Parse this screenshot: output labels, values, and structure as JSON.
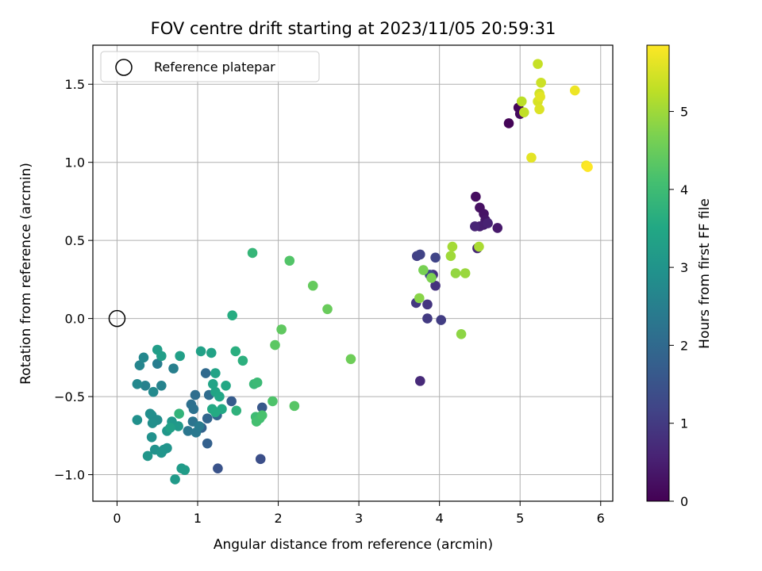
{
  "chart_data": {
    "type": "scatter",
    "title": "FOV centre drift starting at 2023/11/05 20:59:31",
    "xlabel": "Angular distance from reference (arcmin)",
    "ylabel": "Rotation from reference (arcmin)",
    "xlim": [
      -0.3,
      6.15
    ],
    "ylim": [
      -1.17,
      1.75
    ],
    "xticks": [
      "0",
      "1",
      "2",
      "3",
      "4",
      "5",
      "6"
    ],
    "yticks": [
      "−1.0",
      "−0.5",
      "0.0",
      "0.5",
      "1.0",
      "1.5"
    ],
    "grid": true,
    "legend_placement": "top-left",
    "reference": {
      "label": "Reference platepar",
      "x": 0,
      "y": 0
    },
    "colorbar": {
      "label": "Hours from first FF file",
      "colormap": "viridis",
      "range": [
        0,
        5.85
      ],
      "ticks": [
        "0",
        "1",
        "2",
        "3",
        "4",
        "5"
      ]
    },
    "points": [
      [
        4.86,
        1.25,
        0.05
      ],
      [
        4.98,
        1.35,
        0.1
      ],
      [
        5.0,
        1.31,
        0.15
      ],
      [
        4.45,
        0.78,
        0.2
      ],
      [
        4.5,
        0.71,
        0.25
      ],
      [
        4.55,
        0.67,
        0.3
      ],
      [
        4.57,
        0.63,
        0.35
      ],
      [
        4.72,
        0.58,
        0.4
      ],
      [
        4.55,
        0.6,
        0.45
      ],
      [
        4.5,
        0.59,
        0.5
      ],
      [
        4.6,
        0.61,
        0.55
      ],
      [
        4.44,
        0.59,
        0.6
      ],
      [
        4.47,
        0.45,
        0.65
      ],
      [
        3.76,
        -0.4,
        0.7
      ],
      [
        3.92,
        0.28,
        0.8
      ],
      [
        3.95,
        0.21,
        0.85
      ],
      [
        3.85,
        0.09,
        0.9
      ],
      [
        3.71,
        0.1,
        0.95
      ],
      [
        3.85,
        0.0,
        1.0
      ],
      [
        4.02,
        -0.01,
        1.05
      ],
      [
        3.72,
        0.4,
        1.1
      ],
      [
        3.76,
        0.41,
        1.15
      ],
      [
        3.95,
        0.39,
        1.2
      ],
      [
        3.88,
        0.28,
        1.25
      ],
      [
        1.78,
        -0.9,
        1.4
      ],
      [
        1.25,
        -0.96,
        1.5
      ],
      [
        1.8,
        -0.57,
        1.6
      ],
      [
        1.42,
        -0.53,
        1.7
      ],
      [
        1.12,
        -0.8,
        1.8
      ],
      [
        1.05,
        -0.7,
        1.85
      ],
      [
        1.12,
        -0.64,
        1.9
      ],
      [
        1.24,
        -0.62,
        1.95
      ],
      [
        1.1,
        -0.35,
        2.0
      ],
      [
        1.14,
        -0.49,
        2.05
      ],
      [
        0.97,
        -0.49,
        2.1
      ],
      [
        0.92,
        -0.55,
        2.15
      ],
      [
        0.95,
        -0.58,
        2.2
      ],
      [
        0.94,
        -0.66,
        2.25
      ],
      [
        0.88,
        -0.72,
        2.3
      ],
      [
        0.98,
        -0.73,
        2.35
      ],
      [
        1.02,
        -0.69,
        2.4
      ],
      [
        0.5,
        -0.29,
        2.45
      ],
      [
        0.7,
        -0.32,
        2.5
      ],
      [
        0.35,
        -0.43,
        2.55
      ],
      [
        0.55,
        -0.43,
        2.6
      ],
      [
        0.28,
        -0.3,
        2.65
      ],
      [
        0.33,
        -0.25,
        2.7
      ],
      [
        0.25,
        -0.42,
        2.72
      ],
      [
        0.45,
        -0.47,
        2.75
      ],
      [
        0.43,
        -0.62,
        2.8
      ],
      [
        0.5,
        -0.65,
        2.82
      ],
      [
        0.41,
        -0.61,
        2.85
      ],
      [
        0.44,
        -0.67,
        2.88
      ],
      [
        0.25,
        -0.65,
        2.9
      ],
      [
        0.43,
        -0.76,
        2.92
      ],
      [
        0.47,
        -0.84,
        2.95
      ],
      [
        0.58,
        -0.84,
        2.98
      ],
      [
        0.62,
        -0.83,
        3.0
      ],
      [
        0.55,
        -0.86,
        3.02
      ],
      [
        0.38,
        -0.88,
        3.05
      ],
      [
        0.62,
        -0.72,
        3.08
      ],
      [
        0.68,
        -0.66,
        3.1
      ],
      [
        0.76,
        -0.69,
        3.12
      ],
      [
        0.72,
        -1.03,
        3.15
      ],
      [
        0.8,
        -0.96,
        3.18
      ],
      [
        0.84,
        -0.97,
        3.2
      ],
      [
        0.5,
        -0.2,
        3.22
      ],
      [
        0.55,
        -0.24,
        3.25
      ],
      [
        0.78,
        -0.24,
        3.28
      ],
      [
        0.66,
        -0.7,
        3.3
      ],
      [
        1.04,
        -0.21,
        3.32
      ],
      [
        1.17,
        -0.22,
        3.35
      ],
      [
        1.22,
        -0.35,
        3.38
      ],
      [
        1.19,
        -0.42,
        3.4
      ],
      [
        1.22,
        -0.47,
        3.42
      ],
      [
        1.27,
        -0.5,
        3.45
      ],
      [
        1.35,
        -0.43,
        3.48
      ],
      [
        1.3,
        -0.58,
        3.5
      ],
      [
        1.18,
        -0.58,
        3.52
      ],
      [
        1.22,
        -0.6,
        3.55
      ],
      [
        1.43,
        0.02,
        3.6
      ],
      [
        1.47,
        -0.21,
        3.65
      ],
      [
        1.56,
        -0.27,
        3.7
      ],
      [
        1.48,
        -0.59,
        3.75
      ],
      [
        0.77,
        -0.61,
        3.8
      ],
      [
        1.68,
        0.42,
        3.85
      ],
      [
        1.7,
        -0.42,
        3.9
      ],
      [
        1.74,
        -0.41,
        3.95
      ],
      [
        1.72,
        -0.63,
        4.0
      ],
      [
        1.77,
        -0.64,
        4.05
      ],
      [
        1.73,
        -0.66,
        4.1
      ],
      [
        1.8,
        -0.62,
        4.15
      ],
      [
        1.93,
        -0.53,
        4.2
      ],
      [
        2.14,
        0.37,
        4.25
      ],
      [
        2.2,
        -0.56,
        4.3
      ],
      [
        1.96,
        -0.17,
        4.35
      ],
      [
        2.04,
        -0.07,
        4.4
      ],
      [
        2.43,
        0.21,
        4.45
      ],
      [
        2.61,
        0.06,
        4.5
      ],
      [
        2.9,
        -0.26,
        4.55
      ],
      [
        3.8,
        0.31,
        4.65
      ],
      [
        3.9,
        0.26,
        4.7
      ],
      [
        3.75,
        0.13,
        4.8
      ],
      [
        4.27,
        -0.1,
        4.85
      ],
      [
        4.2,
        0.29,
        4.9
      ],
      [
        4.32,
        0.29,
        4.95
      ],
      [
        4.14,
        0.4,
        5.0
      ],
      [
        4.16,
        0.46,
        5.05
      ],
      [
        4.49,
        0.46,
        5.1
      ],
      [
        5.02,
        1.39,
        5.25
      ],
      [
        5.05,
        1.32,
        5.3
      ],
      [
        5.22,
        1.63,
        5.35
      ],
      [
        5.26,
        1.51,
        5.4
      ],
      [
        5.24,
        1.44,
        5.45
      ],
      [
        5.22,
        1.39,
        5.5
      ],
      [
        5.24,
        1.34,
        5.55
      ],
      [
        5.25,
        1.42,
        5.6
      ],
      [
        5.14,
        1.03,
        5.62
      ],
      [
        5.68,
        1.46,
        5.7
      ],
      [
        5.82,
        0.98,
        5.78
      ],
      [
        5.84,
        0.97,
        5.85
      ]
    ]
  }
}
